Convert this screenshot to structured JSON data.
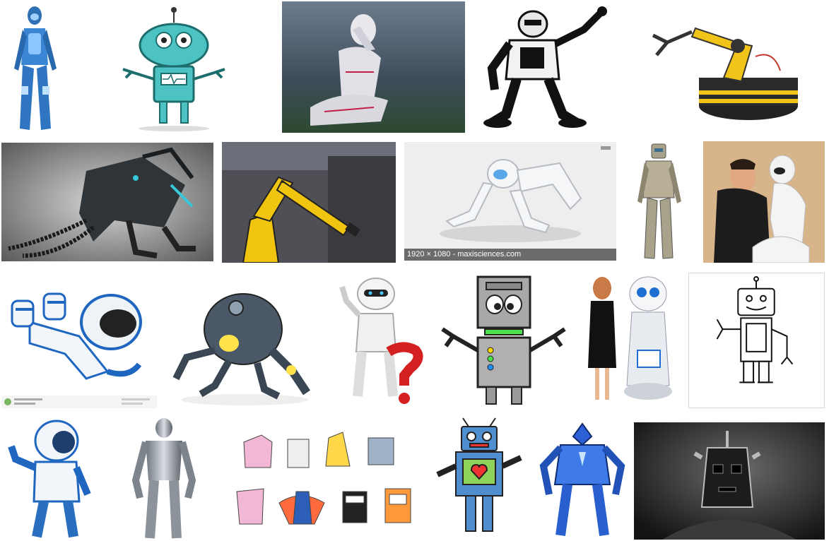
{
  "results": [
    {
      "icon": "blue-humanoid-robot",
      "bg": "#ffffff"
    },
    {
      "icon": "teal-cartoon-robot",
      "bg": "#ffffff"
    },
    {
      "icon": "thinking-white-robot",
      "bg": "#3a4a5a"
    },
    {
      "icon": "robosapien-robot",
      "bg": "#ffffff"
    },
    {
      "icon": "yellow-robotic-arm-kit",
      "bg": "#ffffff"
    },
    {
      "icon": "dark-transformer-robot",
      "bg": "#2b2b2b"
    },
    {
      "icon": "yellow-industrial-arm",
      "bg": "#5a5a60"
    },
    {
      "icon": "crouching-white-robot",
      "bg": "#eeeeee",
      "caption": "1920 × 1080 - maxisciences.com"
    },
    {
      "icon": "tan-humanoid-robot",
      "bg": "#ffffff"
    },
    {
      "icon": "man-with-white-robot",
      "bg": "#d8b48a"
    },
    {
      "icon": "lying-blue-robot",
      "bg": "#ffffff"
    },
    {
      "icon": "spider-robot",
      "bg": "#ffffff"
    },
    {
      "icon": "white-robot-question-mark",
      "bg": "#ffffff"
    },
    {
      "icon": "gray-box-robot",
      "bg": "#ffffff"
    },
    {
      "icon": "woman-with-service-robot",
      "bg": "#ffffff"
    },
    {
      "icon": "outline-line-robot",
      "bg": "#ffffff"
    },
    {
      "icon": "blue-white-walking-robot",
      "bg": "#ffffff"
    },
    {
      "icon": "silver-muscle-robot",
      "bg": "#ffffff"
    },
    {
      "icon": "paper-craft-robots",
      "bg": "#ffffff"
    },
    {
      "icon": "heart-chest-robot",
      "bg": "#ffffff"
    },
    {
      "icon": "blue-armor-mech",
      "bg": "#ffffff"
    },
    {
      "icon": "cyberman-head",
      "bg": "#1e1e1e"
    }
  ]
}
